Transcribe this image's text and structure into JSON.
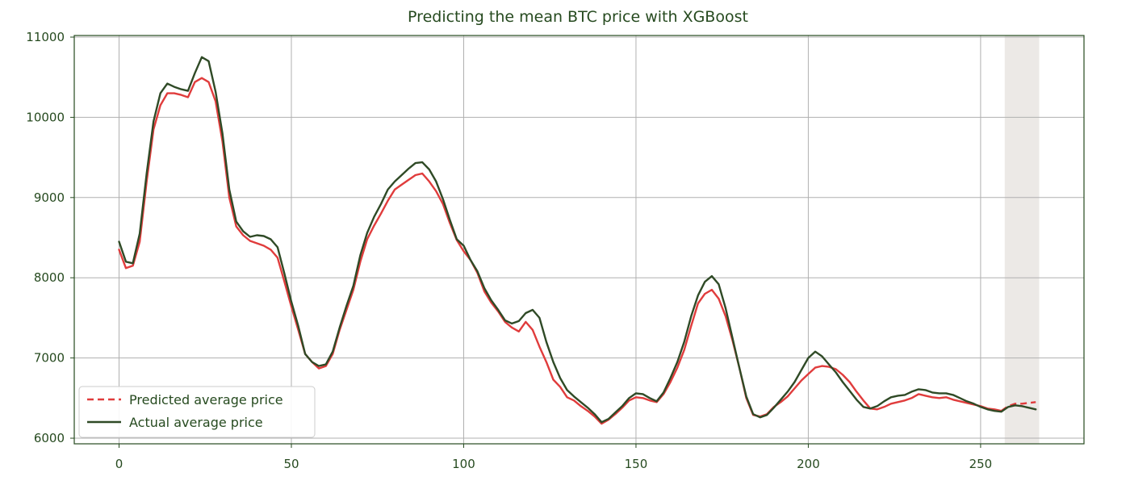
{
  "chart_data": {
    "type": "line",
    "title": "Predicting the mean BTC price with XGBoost",
    "xlabel": "",
    "ylabel": "",
    "xlim": [
      -13,
      280
    ],
    "ylim": [
      5930,
      11020
    ],
    "xticks": [
      0,
      50,
      100,
      150,
      200,
      250
    ],
    "xtick_labels": [
      "0",
      "50",
      "100",
      "150",
      "200",
      "250"
    ],
    "yticks": [
      6000,
      7000,
      8000,
      9000,
      10000,
      11000
    ],
    "ytick_labels": [
      "6000",
      "7000",
      "8000",
      "9000",
      "10000",
      "11000"
    ],
    "grid": true,
    "legend_position": "lower-left",
    "shaded_region": {
      "x_start": 257,
      "x_end": 267,
      "color": "#ece9e6"
    },
    "series": [
      {
        "name": "Predicted average price",
        "style": "dashed",
        "color": "#e03c3c",
        "x": [
          0,
          2,
          4,
          6,
          8,
          10,
          12,
          14,
          16,
          18,
          20,
          22,
          24,
          26,
          28,
          30,
          32,
          34,
          36,
          38,
          40,
          42,
          44,
          46,
          48,
          50,
          52,
          54,
          56,
          58,
          60,
          62,
          64,
          66,
          68,
          70,
          72,
          74,
          76,
          78,
          80,
          82,
          84,
          86,
          88,
          90,
          92,
          94,
          96,
          98,
          100,
          102,
          104,
          106,
          108,
          110,
          112,
          114,
          116,
          118,
          120,
          122,
          124,
          126,
          128,
          130,
          132,
          134,
          136,
          138,
          140,
          142,
          144,
          146,
          148,
          150,
          152,
          154,
          156,
          158,
          160,
          162,
          164,
          166,
          168,
          170,
          172,
          174,
          176,
          178,
          180,
          182,
          184,
          186,
          188,
          190,
          192,
          194,
          196,
          198,
          200,
          202,
          204,
          206,
          208,
          210,
          212,
          214,
          216,
          218,
          220,
          222,
          224,
          226,
          228,
          230,
          232,
          234,
          236,
          238,
          240,
          242,
          244,
          246,
          248,
          250,
          252,
          254,
          256,
          258,
          260,
          262,
          264,
          266
        ],
        "y": [
          8350,
          8120,
          8150,
          8450,
          9200,
          9850,
          10150,
          10300,
          10300,
          10280,
          10250,
          10440,
          10490,
          10440,
          10200,
          9700,
          9000,
          8640,
          8530,
          8460,
          8430,
          8400,
          8350,
          8250,
          7950,
          7640,
          7350,
          7050,
          6950,
          6870,
          6900,
          7050,
          7350,
          7600,
          7850,
          8200,
          8480,
          8650,
          8800,
          8960,
          9100,
          9160,
          9220,
          9280,
          9300,
          9200,
          9080,
          8920,
          8680,
          8470,
          8330,
          8220,
          8060,
          7830,
          7690,
          7580,
          7450,
          7380,
          7330,
          7450,
          7350,
          7140,
          6950,
          6730,
          6640,
          6510,
          6470,
          6400,
          6340,
          6270,
          6180,
          6230,
          6300,
          6380,
          6470,
          6510,
          6500,
          6470,
          6450,
          6550,
          6700,
          6880,
          7100,
          7400,
          7680,
          7800,
          7850,
          7740,
          7520,
          7220,
          6880,
          6500,
          6290,
          6270,
          6300,
          6390,
          6450,
          6520,
          6620,
          6720,
          6800,
          6880,
          6900,
          6890,
          6860,
          6790,
          6700,
          6580,
          6470,
          6370,
          6360,
          6390,
          6430,
          6450,
          6470,
          6500,
          6550,
          6530,
          6510,
          6500,
          6510,
          6480,
          6460,
          6440,
          6420,
          6400,
          6370,
          6360,
          6340,
          6400,
          6430,
          6430,
          6440,
          6450
        ]
      },
      {
        "name": "Actual average price",
        "style": "solid",
        "color": "#2f4a26",
        "x": [
          0,
          2,
          4,
          6,
          8,
          10,
          12,
          14,
          16,
          18,
          20,
          22,
          24,
          26,
          28,
          30,
          32,
          34,
          36,
          38,
          40,
          42,
          44,
          46,
          48,
          50,
          52,
          54,
          56,
          58,
          60,
          62,
          64,
          66,
          68,
          70,
          72,
          74,
          76,
          78,
          80,
          82,
          84,
          86,
          88,
          90,
          92,
          94,
          96,
          98,
          100,
          102,
          104,
          106,
          108,
          110,
          112,
          114,
          116,
          118,
          120,
          122,
          124,
          126,
          128,
          130,
          132,
          134,
          136,
          138,
          140,
          142,
          144,
          146,
          148,
          150,
          152,
          154,
          156,
          158,
          160,
          162,
          164,
          166,
          168,
          170,
          172,
          174,
          176,
          178,
          180,
          182,
          184,
          186,
          188,
          190,
          192,
          194,
          196,
          198,
          200,
          202,
          204,
          206,
          208,
          210,
          212,
          214,
          216,
          218,
          220,
          222,
          224,
          226,
          228,
          230,
          232,
          234,
          236,
          238,
          240,
          242,
          244,
          246,
          248,
          250,
          252,
          254,
          256,
          258,
          260,
          262,
          264,
          266
        ],
        "y": [
          8450,
          8200,
          8180,
          8550,
          9300,
          9950,
          10300,
          10420,
          10380,
          10350,
          10330,
          10550,
          10750,
          10700,
          10320,
          9800,
          9100,
          8700,
          8580,
          8510,
          8530,
          8520,
          8480,
          8380,
          8050,
          7700,
          7400,
          7050,
          6950,
          6900,
          6920,
          7080,
          7380,
          7650,
          7900,
          8280,
          8560,
          8760,
          8920,
          9100,
          9200,
          9280,
          9360,
          9430,
          9440,
          9350,
          9200,
          8980,
          8720,
          8480,
          8400,
          8220,
          8080,
          7870,
          7720,
          7600,
          7470,
          7430,
          7460,
          7560,
          7600,
          7500,
          7200,
          6950,
          6750,
          6600,
          6520,
          6450,
          6380,
          6300,
          6200,
          6240,
          6320,
          6400,
          6500,
          6560,
          6550,
          6500,
          6460,
          6570,
          6750,
          6950,
          7200,
          7520,
          7780,
          7950,
          8020,
          7920,
          7620,
          7250,
          6880,
          6520,
          6300,
          6260,
          6290,
          6380,
          6480,
          6580,
          6700,
          6850,
          7000,
          7080,
          7020,
          6920,
          6820,
          6700,
          6590,
          6480,
          6390,
          6370,
          6400,
          6460,
          6510,
          6530,
          6540,
          6580,
          6610,
          6600,
          6570,
          6560,
          6560,
          6540,
          6500,
          6460,
          6430,
          6390,
          6360,
          6340,
          6330,
          6390,
          6410,
          6400,
          6380,
          6360
        ]
      }
    ]
  }
}
